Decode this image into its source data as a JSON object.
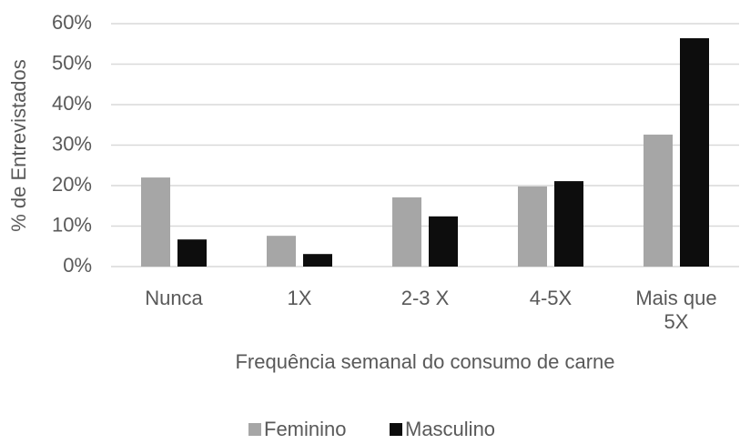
{
  "chart_data": {
    "type": "bar",
    "categories": [
      "Nunca",
      "1X",
      "2-3 X",
      "4-5X",
      "Mais que 5X"
    ],
    "series": [
      {
        "name": "Feminino",
        "color": "#a6a6a6",
        "values": [
          22.0,
          7.6,
          17.1,
          19.8,
          32.6
        ]
      },
      {
        "name": "Masculino",
        "color": "#0d0d0d",
        "values": [
          6.7,
          3.1,
          12.4,
          21.1,
          56.4
        ]
      }
    ],
    "ylim": [
      0,
      60
    ],
    "yticks": [
      {
        "value": 0,
        "label": "0%"
      },
      {
        "value": 10,
        "label": "10%"
      },
      {
        "value": 20,
        "label": "20%"
      },
      {
        "value": 30,
        "label": "30%"
      },
      {
        "value": 40,
        "label": "40%"
      },
      {
        "value": 50,
        "label": "50%"
      },
      {
        "value": 60,
        "label": "60%"
      }
    ],
    "ylabel": "% de Entrevistados",
    "xlabel": "Frequência semanal do consumo de carne",
    "grid": true,
    "legend": "bottom"
  }
}
